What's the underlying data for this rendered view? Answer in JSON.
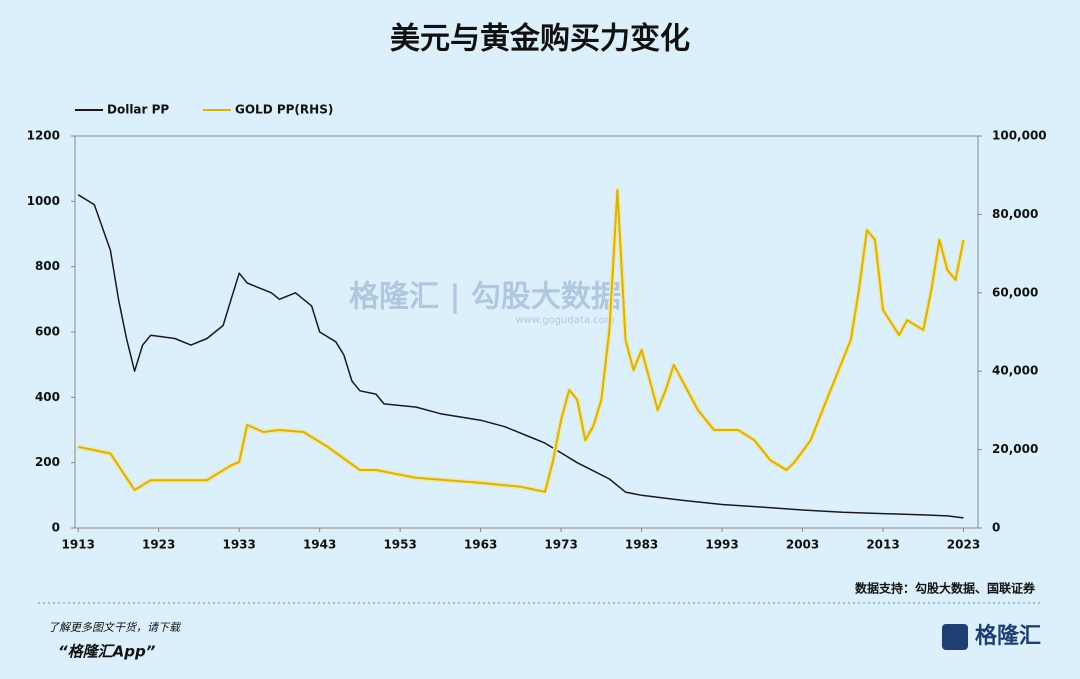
{
  "chart_data": {
    "type": "line",
    "title": "美元与黄金购买力变化",
    "source": "数据支持：勾股大数据、国联证券",
    "footer_note": "了解更多图文干货，请下载",
    "footer_app": "“格隆汇App”",
    "logo": "格隆汇",
    "watermark": "格隆汇 | 勾股大数据",
    "watermark_url": "www.gogudata.com",
    "xlim": [
      1912.6,
      2024.8
    ],
    "xticks": [
      1913,
      1923,
      1933,
      1943,
      1953,
      1963,
      1973,
      1983,
      1993,
      2003,
      2013,
      2023
    ],
    "ylim": [
      0,
      1200
    ],
    "yticks": [
      0,
      200,
      400,
      600,
      800,
      1000,
      1200
    ],
    "y2lim": [
      0,
      100000
    ],
    "y2ticks": [
      0,
      {
        "value": 20000,
        "label": "20,000"
      },
      {
        "value": 40000,
        "label": "40,000"
      },
      {
        "value": 60000,
        "label": "60,000"
      },
      {
        "value": 80000,
        "label": "80,000"
      },
      {
        "value": 100000,
        "label": "100,000"
      }
    ],
    "series": [
      {
        "name": "Dollar PP",
        "color": "#1a1a1a",
        "x": [
          1913,
          1915,
          1917,
          1918,
          1919,
          1920,
          1921,
          1922,
          1925,
          1927,
          1929,
          1931,
          1932,
          1933,
          1934,
          1937,
          1938,
          1940,
          1942,
          1943,
          1945,
          1946,
          1947,
          1948,
          1950,
          1951,
          1955,
          1958,
          1963,
          1966,
          1969,
          1971,
          1973,
          1975,
          1977,
          1979,
          1981,
          1983,
          1988,
          1993,
          1998,
          2003,
          2008,
          2013,
          2018,
          2021,
          2023
        ],
        "values": [
          1020,
          990,
          850,
          700,
          580,
          480,
          560,
          590,
          580,
          560,
          580,
          620,
          700,
          780,
          750,
          720,
          700,
          720,
          680,
          600,
          570,
          530,
          450,
          420,
          410,
          380,
          370,
          350,
          330,
          310,
          280,
          260,
          230,
          200,
          175,
          150,
          110,
          100,
          85,
          72,
          64,
          55,
          48,
          44,
          40,
          37,
          31
        ]
      },
      {
        "name": "GOLD PP(RHS)",
        "color": "#d4b21a",
        "axis": "y2",
        "x": [
          1913,
          1917,
          1920,
          1922,
          1929,
          1932,
          1933,
          1934,
          1936,
          1938,
          1941,
          1944,
          1948,
          1950,
          1955,
          1963,
          1968,
          1971,
          1972,
          1973,
          1974,
          1975,
          1976,
          1977,
          1978,
          1979,
          1980,
          1981,
          1982,
          1983,
          1984,
          1985,
          1986,
          1987,
          1988,
          1990,
          1992,
          1995,
          1997,
          1999,
          2001,
          2002,
          2004,
          2006,
          2008,
          2009,
          2010,
          2011,
          2012,
          2013,
          2015,
          2016,
          2018,
          2019,
          2020,
          2021,
          2022,
          2023
        ],
        "values": [
          20700,
          19000,
          9700,
          12200,
          12200,
          16000,
          16800,
          26300,
          24500,
          25000,
          24500,
          20700,
          14800,
          14800,
          12800,
          11500,
          10500,
          9200,
          17300,
          27600,
          35200,
          32700,
          22400,
          26000,
          32700,
          50500,
          86200,
          48000,
          40300,
          45400,
          37800,
          30100,
          35200,
          41600,
          37800,
          30100,
          25000,
          25000,
          22400,
          17300,
          14800,
          16800,
          22400,
          32700,
          42900,
          48000,
          60700,
          76000,
          73500,
          55600,
          49200,
          53000,
          50500,
          60700,
          73500,
          65800,
          63300,
          73500
        ]
      }
    ]
  }
}
